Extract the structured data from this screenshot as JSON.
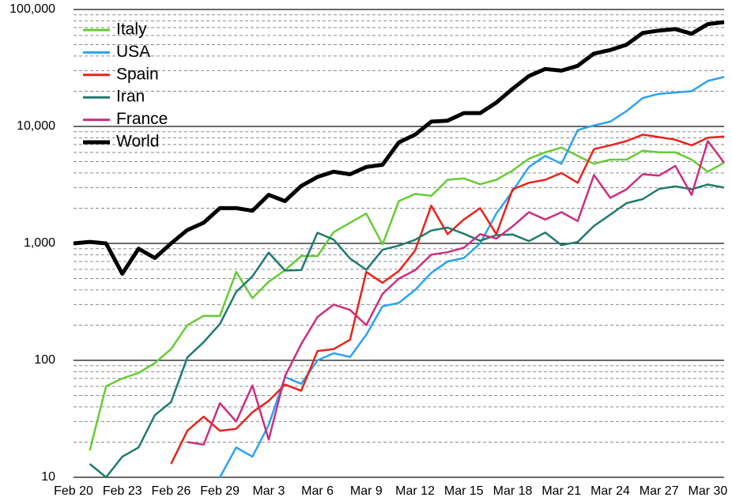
{
  "chart_data": {
    "type": "line",
    "log_scale": true,
    "grid": true,
    "legend_position": "upper-left",
    "categories": [
      "Feb 20",
      null,
      null,
      "Feb 23",
      null,
      null,
      "Feb 26",
      null,
      null,
      "Feb 29",
      null,
      null,
      "Mar 3",
      null,
      null,
      "Mar 6",
      null,
      null,
      "Mar 9",
      null,
      null,
      "Mar 12",
      null,
      null,
      "Mar 15",
      null,
      null,
      "Mar 18",
      null,
      null,
      "Mar 21",
      null,
      null,
      "Mar 24",
      null,
      null,
      "Mar 27",
      null,
      null,
      "Mar 30",
      null
    ],
    "ylim": [
      10,
      100000
    ],
    "yticks": [
      {
        "value": 10,
        "label": "10"
      },
      {
        "value": 100,
        "label": "100"
      },
      {
        "value": 1000,
        "label": "1,000"
      },
      {
        "value": 10000,
        "label": "10,000"
      },
      {
        "value": 100000,
        "label": "100,000"
      }
    ],
    "yminorticks": [
      20,
      30,
      40,
      50,
      60,
      70,
      80,
      90,
      200,
      300,
      400,
      500,
      600,
      700,
      800,
      900,
      2000,
      3000,
      4000,
      5000,
      6000,
      7000,
      8000,
      9000,
      20000,
      30000,
      40000,
      50000,
      60000,
      70000,
      80000,
      90000
    ],
    "series": [
      {
        "name": "Italy",
        "color": "#66cc33",
        "values": [
          null,
          17,
          60,
          70,
          78,
          95,
          125,
          200,
          240,
          240,
          570,
          340,
          470,
          590,
          780,
          780,
          1250,
          1500,
          1800,
          980,
          2300,
          2650,
          2550,
          3500,
          3600,
          3200,
          3500,
          4200,
          5300,
          6000,
          6600,
          5600,
          4800,
          5200,
          5200,
          6200,
          6000,
          6000,
          5200,
          4100,
          4900
        ]
      },
      {
        "name": "USA",
        "color": "#2aa3f0",
        "values": [
          null,
          null,
          null,
          null,
          null,
          null,
          null,
          null,
          null,
          10,
          18,
          15,
          28,
          72,
          63,
          100,
          115,
          107,
          165,
          290,
          310,
          400,
          560,
          700,
          750,
          1000,
          1800,
          2800,
          4500,
          5600,
          4800,
          9300,
          10200,
          11000,
          13500,
          17500,
          19000,
          19500,
          20000,
          24500,
          26500
        ]
      },
      {
        "name": "Spain",
        "color": "#e8231a",
        "values": [
          null,
          null,
          null,
          null,
          null,
          null,
          13,
          25,
          33,
          25,
          26,
          36,
          45,
          62,
          55,
          120,
          125,
          150,
          570,
          460,
          580,
          870,
          2100,
          1200,
          1600,
          2000,
          1200,
          2900,
          3300,
          3500,
          4000,
          3300,
          6400,
          6900,
          7500,
          8500,
          8100,
          7700,
          6900,
          8000,
          8200
        ]
      },
      {
        "name": "Iran",
        "color": "#1f7a6e",
        "values": [
          null,
          13,
          10,
          15,
          18,
          34,
          44,
          106,
          143,
          205,
          385,
          523,
          835,
          586,
          591,
          1234,
          1076,
          743,
          595,
          881,
          958,
          1075,
          1289,
          1365,
          1209,
          1053,
          1178,
          1192,
          1046,
          1237,
          966,
          1028,
          1411,
          1762,
          2206,
          2389,
          2926,
          3076,
          2901,
          3186,
          3000
        ]
      },
      {
        "name": "France",
        "color": "#cc2e7f",
        "values": [
          null,
          null,
          null,
          null,
          null,
          null,
          null,
          20,
          19,
          43,
          30,
          61,
          21,
          73,
          138,
          235,
          300,
          270,
          200,
          370,
          500,
          590,
          800,
          840,
          920,
          1200,
          1100,
          1400,
          1850,
          1600,
          1850,
          1550,
          3850,
          2450,
          2900,
          3900,
          3800,
          4600,
          2600,
          7500,
          4900
        ]
      },
      {
        "name": "World",
        "color": "#000000",
        "values": [
          1000,
          1030,
          1000,
          550,
          900,
          750,
          1000,
          1300,
          1500,
          2000,
          2000,
          1900,
          2600,
          2300,
          3100,
          3700,
          4100,
          3900,
          4500,
          4700,
          7300,
          8500,
          11000,
          11200,
          13000,
          13000,
          16000,
          21000,
          27000,
          31000,
          30000,
          33000,
          42000,
          45000,
          50000,
          63000,
          66000,
          68000,
          62000,
          75000,
          78000
        ]
      }
    ]
  }
}
